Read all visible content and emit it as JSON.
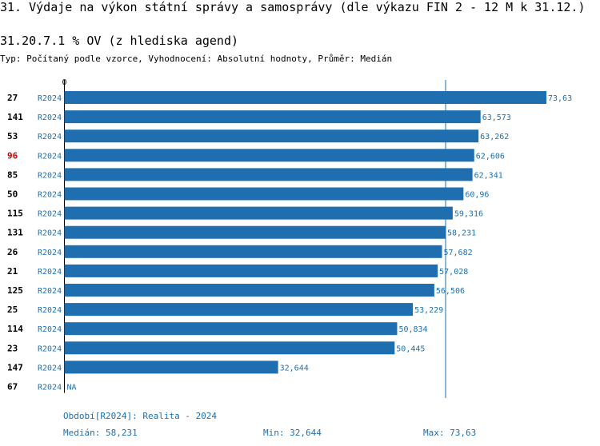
{
  "header": {
    "title": "31. Výdaje na výkon státní správy a samosprávy (dle výkazu FIN 2 - 12 M k 31.12.)",
    "subtitle": "31.20.7.1 % OV (z hlediska agend)",
    "type_line": "Typ: Počítaný podle vzorce, Vyhodnocení: Absolutní hodnoty, Průměr: Medián"
  },
  "chart_data": {
    "type": "bar",
    "orientation": "horizontal",
    "axis_zero_label": "0",
    "xlim": [
      0,
      73.63
    ],
    "reference_line": {
      "name": "Medián",
      "value": 58.231
    },
    "highlight_color": "#cc0000",
    "bar_color": "#1f6fb0",
    "rows": [
      {
        "id": "27",
        "period": "R2024",
        "value": 73.63,
        "label": "73,63",
        "highlight": false
      },
      {
        "id": "141",
        "period": "R2024",
        "value": 63.573,
        "label": "63,573",
        "highlight": false
      },
      {
        "id": "53",
        "period": "R2024",
        "value": 63.262,
        "label": "63,262",
        "highlight": false
      },
      {
        "id": "96",
        "period": "R2024",
        "value": 62.606,
        "label": "62,606",
        "highlight": true
      },
      {
        "id": "85",
        "period": "R2024",
        "value": 62.341,
        "label": "62,341",
        "highlight": false
      },
      {
        "id": "50",
        "period": "R2024",
        "value": 60.96,
        "label": "60,96",
        "highlight": false
      },
      {
        "id": "115",
        "period": "R2024",
        "value": 59.316,
        "label": "59,316",
        "highlight": false
      },
      {
        "id": "131",
        "period": "R2024",
        "value": 58.231,
        "label": "58,231",
        "highlight": false
      },
      {
        "id": "26",
        "period": "R2024",
        "value": 57.682,
        "label": "57,682",
        "highlight": false
      },
      {
        "id": "21",
        "period": "R2024",
        "value": 57.028,
        "label": "57,028",
        "highlight": false
      },
      {
        "id": "125",
        "period": "R2024",
        "value": 56.506,
        "label": "56,506",
        "highlight": false
      },
      {
        "id": "25",
        "period": "R2024",
        "value": 53.229,
        "label": "53,229",
        "highlight": false
      },
      {
        "id": "114",
        "period": "R2024",
        "value": 50.834,
        "label": "50,834",
        "highlight": false
      },
      {
        "id": "23",
        "period": "R2024",
        "value": 50.445,
        "label": "50,445",
        "highlight": false
      },
      {
        "id": "147",
        "period": "R2024",
        "value": 32.644,
        "label": "32,644",
        "highlight": false
      },
      {
        "id": "67",
        "period": "R2024",
        "value": null,
        "label": "NA",
        "highlight": false
      }
    ]
  },
  "footer": {
    "period_note": "Období[R2024]: Realita - 2024",
    "median": "Medián: 58,231",
    "min": "Min: 32,644",
    "max": "Max: 73,63"
  }
}
